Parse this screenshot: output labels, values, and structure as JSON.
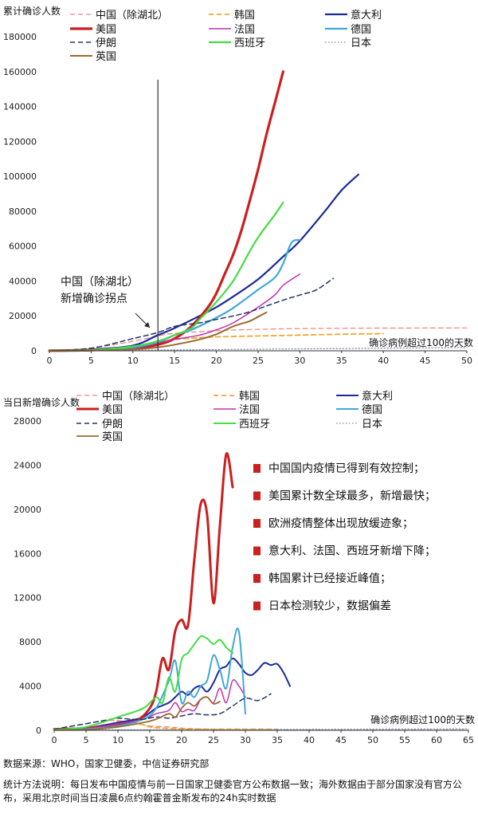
{
  "chart_data": [
    {
      "type": "line",
      "ylabel": "累计确诊人数",
      "xlabel": "确诊病例超过100的天数",
      "xlim": [
        0,
        50
      ],
      "ylim": [
        0,
        180000
      ],
      "xticks": [
        "0",
        "5",
        "10",
        "15",
        "20",
        "25",
        "30",
        "35",
        "40",
        "45",
        "50"
      ],
      "yticks": [
        "0",
        "20000",
        "40000",
        "60000",
        "80000",
        "100000",
        "120000",
        "140000",
        "160000",
        "180000"
      ],
      "annotation": [
        "中国（除湖北）",
        "新增确诊拐点"
      ],
      "marker_x": 13,
      "series": [
        {
          "name": "中国（除湖北）",
          "color": "#f08080",
          "style": "dash",
          "width": 1.2,
          "x": [
            0,
            5,
            10,
            13,
            15,
            20,
            25,
            30,
            35,
            40,
            45,
            50
          ],
          "y": [
            200,
            1500,
            5500,
            8500,
            10000,
            11500,
            12300,
            12700,
            12900,
            13000,
            13050,
            13100
          ]
        },
        {
          "name": "韩国",
          "color": "#f0a830",
          "style": "dash",
          "width": 1.8,
          "x": [
            0,
            5,
            10,
            13,
            15,
            18,
            20,
            25,
            30,
            35,
            40
          ],
          "y": [
            100,
            500,
            1600,
            5000,
            6500,
            7500,
            8000,
            8500,
            9000,
            9500,
            9800
          ]
        },
        {
          "name": "意大利",
          "color": "#1a2a9a",
          "style": "solid",
          "width": 2.2,
          "x": [
            0,
            5,
            10,
            13,
            15,
            18,
            20,
            22,
            25,
            28,
            30,
            33,
            35,
            37
          ],
          "y": [
            150,
            800,
            3000,
            9000,
            13000,
            20000,
            25000,
            31000,
            41000,
            54000,
            63000,
            80000,
            92000,
            101000
          ]
        },
        {
          "name": "美国",
          "color": "#cc1f1f",
          "style": "solid",
          "width": 3.2,
          "x": [
            0,
            5,
            10,
            13,
            15,
            17,
            19,
            20,
            21,
            22,
            23,
            24,
            25,
            26,
            27,
            28
          ],
          "y": [
            100,
            400,
            1500,
            3500,
            7000,
            14000,
            25000,
            33000,
            44000,
            55000,
            69000,
            86000,
            104000,
            124000,
            142000,
            160000
          ]
        },
        {
          "name": "法国",
          "color": "#c030b0",
          "style": "solid",
          "width": 1.5,
          "x": [
            0,
            5,
            10,
            13,
            15,
            18,
            20,
            22,
            25,
            27,
            28,
            30
          ],
          "y": [
            100,
            300,
            1500,
            4500,
            6500,
            9000,
            12000,
            16000,
            25000,
            32000,
            37500,
            44000
          ]
        },
        {
          "name": "德国",
          "color": "#40a8d8",
          "style": "solid",
          "width": 2.2,
          "x": [
            0,
            5,
            10,
            13,
            15,
            17,
            20,
            22,
            25,
            27,
            28,
            29,
            30
          ],
          "y": [
            150,
            400,
            2000,
            5000,
            9000,
            12000,
            19000,
            24500,
            35000,
            42000,
            50000,
            62000,
            63500
          ]
        },
        {
          "name": "伊朗",
          "color": "#223366",
          "style": "dash",
          "width": 1.5,
          "x": [
            0,
            5,
            10,
            13,
            15,
            18,
            20,
            23,
            25,
            28,
            30,
            32,
            34
          ],
          "y": [
            100,
            1500,
            7000,
            10500,
            14000,
            16000,
            18000,
            21000,
            24000,
            29000,
            32000,
            35000,
            41500
          ]
        },
        {
          "name": "西班牙",
          "color": "#44dd44",
          "style": "solid",
          "width": 2.2,
          "x": [
            0,
            5,
            10,
            13,
            15,
            17,
            18,
            20,
            22,
            24,
            25,
            27,
            28
          ],
          "y": [
            150,
            400,
            2500,
            5500,
            9000,
            13000,
            18000,
            28000,
            40000,
            57000,
            65000,
            78000,
            85000
          ]
        },
        {
          "name": "日本",
          "color": "#8090b0",
          "style": "dot",
          "width": 1.2,
          "x": [
            0,
            5,
            10,
            15,
            20,
            25,
            30,
            35,
            40,
            45,
            50
          ],
          "y": [
            100,
            200,
            350,
            500,
            700,
            900,
            1100,
            1300,
            1500,
            1700,
            1900
          ]
        },
        {
          "name": "英国",
          "color": "#9a6a30",
          "style": "solid",
          "width": 2.0,
          "x": [
            0,
            5,
            10,
            13,
            15,
            18,
            20,
            22,
            24,
            25,
            26
          ],
          "y": [
            100,
            200,
            800,
            2000,
            3500,
            6500,
            9500,
            14000,
            17000,
            19500,
            22000
          ]
        }
      ]
    },
    {
      "type": "line",
      "ylabel": "当日新增确诊人数",
      "xlabel": "确诊病例超过100的天数",
      "xlim": [
        0,
        65
      ],
      "ylim": [
        0,
        28000
      ],
      "xticks": [
        "0",
        "5",
        "10",
        "15",
        "20",
        "25",
        "30",
        "35",
        "40",
        "45",
        "50",
        "55",
        "60",
        "65"
      ],
      "yticks": [
        "0",
        "4000",
        "8000",
        "12000",
        "16000",
        "20000",
        "24000",
        "28000"
      ],
      "bullets": [
        "中国国内疫情已得到有效控制；",
        "美国累计数全球最多，新增最快；",
        "欧洲疫情整体出现放缓迹象；",
        "意大利、法国、西班牙新增下降；",
        "韩国累计已经接近峰值；",
        "日本检测较少，数据偏差"
      ],
      "series": [
        {
          "name": "中国（除湖北）",
          "color": "#f08080",
          "style": "dash",
          "width": 1.2,
          "x": [
            0,
            3,
            6,
            9,
            11,
            13,
            15,
            18,
            20,
            25,
            30,
            35,
            40,
            45,
            50,
            55,
            60,
            65
          ],
          "y": [
            100,
            400,
            700,
            900,
            800,
            600,
            400,
            300,
            200,
            100,
            50,
            30,
            20,
            10,
            10,
            5,
            5,
            5
          ]
        },
        {
          "name": "韩国",
          "color": "#f0a830",
          "style": "dash",
          "width": 1.8,
          "x": [
            0,
            3,
            5,
            7,
            8,
            9,
            10,
            11,
            12,
            13,
            14,
            15,
            17,
            20,
            25,
            30,
            35
          ],
          "y": [
            50,
            100,
            200,
            400,
            500,
            600,
            800,
            700,
            900,
            600,
            500,
            300,
            200,
            120,
            100,
            100,
            90
          ]
        },
        {
          "name": "意大利",
          "color": "#1a2a9a",
          "style": "solid",
          "width": 2.0,
          "x": [
            0,
            5,
            10,
            12,
            14,
            16,
            18,
            19,
            20,
            21,
            22,
            23,
            24,
            25,
            26,
            27,
            28,
            29,
            30,
            31,
            32,
            33,
            34,
            35,
            36,
            37
          ],
          "y": [
            50,
            200,
            700,
            900,
            1200,
            2000,
            2500,
            3000,
            3500,
            3200,
            3800,
            4000,
            3500,
            4300,
            5500,
            5800,
            6500,
            6000,
            5200,
            5000,
            5500,
            6100,
            5900,
            6000,
            5200,
            4000
          ]
        },
        {
          "name": "美国",
          "color": "#cc1f1f",
          "style": "solid",
          "width": 3.0,
          "x": [
            0,
            5,
            10,
            13,
            15,
            16,
            17,
            18,
            19,
            20,
            21,
            22,
            23,
            24,
            25,
            26,
            27,
            28
          ],
          "y": [
            100,
            200,
            500,
            900,
            2000,
            3500,
            6500,
            5500,
            9000,
            10000,
            9500,
            15500,
            20500,
            19500,
            11500,
            18500,
            25000,
            22000
          ]
        },
        {
          "name": "法国",
          "color": "#c030b0",
          "style": "solid",
          "width": 1.5,
          "x": [
            0,
            5,
            10,
            14,
            16,
            18,
            19,
            20,
            21,
            22,
            23,
            24,
            25,
            26,
            27,
            28,
            29,
            30
          ],
          "y": [
            50,
            150,
            600,
            1000,
            1500,
            1800,
            2500,
            1700,
            1900,
            1800,
            2800,
            3000,
            2500,
            3800,
            2500,
            4500,
            4000,
            3000
          ]
        },
        {
          "name": "德国",
          "color": "#40a8d8",
          "style": "solid",
          "width": 2.0,
          "x": [
            0,
            5,
            10,
            14,
            16,
            18,
            19,
            20,
            21,
            22,
            23,
            24,
            25,
            26,
            27,
            28,
            29,
            30
          ],
          "y": [
            50,
            100,
            400,
            1000,
            2000,
            4500,
            6300,
            2500,
            3500,
            3000,
            4000,
            4500,
            6800,
            5500,
            3800,
            7500,
            8900,
            1500
          ]
        },
        {
          "name": "伊朗",
          "color": "#223366",
          "style": "dash",
          "width": 1.5,
          "x": [
            0,
            5,
            8,
            10,
            12,
            14,
            16,
            18,
            20,
            22,
            24,
            26,
            28,
            30,
            32,
            34
          ],
          "y": [
            100,
            600,
            900,
            1100,
            1000,
            1000,
            1200,
            1100,
            1300,
            1500,
            1400,
            1500,
            2200,
            2900,
            2700,
            3300
          ]
        },
        {
          "name": "西班牙",
          "color": "#44dd44",
          "style": "solid",
          "width": 2.0,
          "x": [
            0,
            5,
            10,
            14,
            16,
            17,
            18,
            19,
            20,
            21,
            22,
            23,
            24,
            25,
            26,
            27,
            28
          ],
          "y": [
            50,
            300,
            1200,
            2000,
            3000,
            2500,
            4800,
            3500,
            6400,
            7000,
            7800,
            8500,
            8300,
            7800,
            8200,
            7500,
            7000
          ]
        },
        {
          "name": "日本",
          "color": "#8090b0",
          "style": "dot",
          "width": 1.2,
          "x": [
            0,
            10,
            20,
            30,
            40,
            50,
            60,
            65
          ],
          "y": [
            20,
            40,
            50,
            60,
            80,
            100,
            120,
            130
          ]
        },
        {
          "name": "英国",
          "color": "#9a6a30",
          "style": "solid",
          "width": 1.8,
          "x": [
            0,
            5,
            10,
            14,
            16,
            18,
            19,
            20,
            21,
            22,
            23,
            24,
            25,
            26
          ],
          "y": [
            20,
            50,
            300,
            700,
            1000,
            1500,
            1200,
            2000,
            2500,
            2200,
            2800,
            3000,
            2400,
            2600
          ]
        }
      ]
    }
  ],
  "footer": {
    "source": "数据来源：WHO，国家卫健委，中信证券研究部",
    "method": "统计方法说明：每日发布中国疫情与前一日国家卫健委官方公布数据一致；海外数据由于部分国家没有官方公布，采用北京时间当日凌晨6点约翰霍普金斯发布的24h实时数据"
  }
}
